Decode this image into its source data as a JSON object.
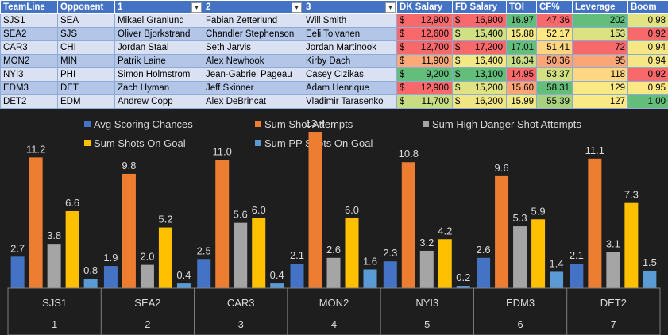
{
  "table": {
    "headers": [
      "TeamLine",
      "Opponent",
      "1",
      "2",
      "3",
      "DK Salary",
      "FD Salary",
      "TOI",
      "CF%",
      "Leverage",
      "Boom"
    ],
    "filter_cols": [
      2,
      3,
      4
    ],
    "rows": [
      {
        "teamline": "SJS1",
        "opponent": "SEA",
        "p1": "Mikael Granlund",
        "p2": "Fabian Zetterlund",
        "p3": "Will Smith",
        "dk": "12,900",
        "fd": "16,900",
        "toi": "16.97",
        "cf": "47.36",
        "lev": "202",
        "boom": "0.98"
      },
      {
        "teamline": "SEA2",
        "opponent": "SJS",
        "p1": "Oliver Bjorkstrand",
        "p2": "Chandler Stephenson",
        "p3": "Eeli Tolvanen",
        "dk": "12,600",
        "fd": "15,400",
        "toi": "15.88",
        "cf": "52.17",
        "lev": "153",
        "boom": "0.92"
      },
      {
        "teamline": "CAR3",
        "opponent": "CHI",
        "p1": "Jordan Staal",
        "p2": "Seth Jarvis",
        "p3": "Jordan Martinook",
        "dk": "12,700",
        "fd": "17,200",
        "toi": "17.01",
        "cf": "51.41",
        "lev": "72",
        "boom": "0.94"
      },
      {
        "teamline": "MON2",
        "opponent": "MIN",
        "p1": "Patrik Laine",
        "p2": "Alex Newhook",
        "p3": "Kirby Dach",
        "dk": "11,900",
        "fd": "16,400",
        "toi": "16.34",
        "cf": "50.36",
        "lev": "95",
        "boom": "0.94"
      },
      {
        "teamline": "NYI3",
        "opponent": "PHI",
        "p1": "Simon Holmstrom",
        "p2": "Jean-Gabriel Pageau",
        "p3": "Casey Cizikas",
        "dk": "9,200",
        "fd": "13,100",
        "toi": "14.95",
        "cf": "53.37",
        "lev": "118",
        "boom": "0.92"
      },
      {
        "teamline": "EDM3",
        "opponent": "DET",
        "p1": "Zach Hyman",
        "p2": "Jeff Skinner",
        "p3": "Adam Henrique",
        "dk": "12,900",
        "fd": "15,200",
        "toi": "15.60",
        "cf": "58.31",
        "lev": "129",
        "boom": "0.95"
      },
      {
        "teamline": "DET2",
        "opponent": "EDM",
        "p1": "Andrew Copp",
        "p2": "Alex DeBrincat",
        "p3": "Vladimir Tarasenko",
        "dk": "11,700",
        "fd": "16,200",
        "toi": "15.99",
        "cf": "55.39",
        "lev": "127",
        "boom": "1.00"
      }
    ],
    "currency_symbol": "$",
    "cell_colors": {
      "dk": [
        "#f8696b",
        "#f8696b",
        "#f8696b",
        "#fbaa77",
        "#63be7b",
        "#f8696b",
        "#c8dc82"
      ],
      "fd": [
        "#f8696b",
        "#d1e083",
        "#f8696b",
        "#f3e984",
        "#63be7b",
        "#dfe383",
        "#f0e784"
      ],
      "toi": [
        "#63be7b",
        "#f4e884",
        "#63be7b",
        "#c8dc82",
        "#f8696b",
        "#fba576",
        "#f2e884"
      ],
      "cf": [
        "#f8696b",
        "#ffe884",
        "#fed580",
        "#fba576",
        "#d3e082",
        "#63be7b",
        "#a9d27f"
      ],
      "lev": [
        "#63be7b",
        "#dce282",
        "#f8696b",
        "#fba676",
        "#fdd781",
        "#f8e985",
        "#f9ea85"
      ],
      "boom": [
        "#e2e483",
        "#f8696b",
        "#f5e884",
        "#f5e884",
        "#f8696b",
        "#fbe884",
        "#63be7b"
      ]
    }
  },
  "chart_data": {
    "type": "bar",
    "legend_position": "top",
    "categories": [
      "SJS1",
      "SEA2",
      "CAR3",
      "MON2",
      "NYI3",
      "EDM3",
      "DET2"
    ],
    "category_ranks": [
      "1",
      "2",
      "3",
      "4",
      "5",
      "6",
      "7"
    ],
    "ylim": [
      0,
      14
    ],
    "grid": false,
    "series": [
      {
        "name": "Avg Scoring Chances",
        "color": "#4472c4",
        "values": [
          2.7,
          1.9,
          2.5,
          2.1,
          2.3,
          2.6,
          2.1
        ],
        "labels": [
          "2.7",
          "1.9",
          "2.5",
          "2.1",
          "2.3",
          "2.6",
          "2.1"
        ]
      },
      {
        "name": "Sum Shot Attempts",
        "color": "#ed7d31",
        "values": [
          11.2,
          9.8,
          11.0,
          13.4,
          10.8,
          9.6,
          11.1
        ],
        "labels": [
          "11.2",
          "9.8",
          "11.0",
          "13.4",
          "10.8",
          "9.6",
          "11.1"
        ]
      },
      {
        "name": "Sum High Danger Shot Attempts",
        "color": "#a5a5a5",
        "values": [
          3.8,
          2.0,
          5.6,
          2.6,
          3.2,
          5.3,
          3.1
        ],
        "labels": [
          "3.8",
          "2.0",
          "5.6",
          "2.6",
          "3.2",
          "5.3",
          "3.1"
        ]
      },
      {
        "name": "Sum Shots On Goal",
        "color": "#ffc000",
        "values": [
          6.6,
          5.2,
          6.0,
          6.0,
          4.2,
          5.9,
          7.3
        ],
        "labels": [
          "6.6",
          "5.2",
          "6.0",
          "6.0",
          "4.2",
          "5.9",
          "7.3"
        ]
      },
      {
        "name": "Sum PP Shots On Goal",
        "color": "#5b9bd5",
        "values": [
          0.8,
          0.4,
          0.4,
          1.6,
          0.2,
          1.4,
          1.5
        ],
        "labels": [
          "0.8",
          "0.4",
          "0.4",
          "1.6",
          "0.2",
          "1.4",
          "1.5"
        ]
      }
    ]
  }
}
